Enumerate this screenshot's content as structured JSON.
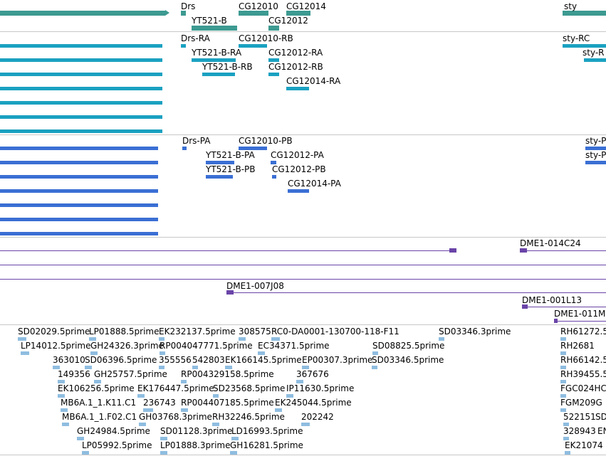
{
  "colors": {
    "gene": "#3d9a91",
    "transcript": "#1aa1c1",
    "protein": "#3a6fd4",
    "clone": "#6a44a8",
    "est": "#8fbde0",
    "separator": "#c8c8c8"
  },
  "gene_track": {
    "labels": [
      "Drs",
      "CG12010",
      "CG12014",
      "sty",
      "YT521-B",
      "CG12012"
    ]
  },
  "transcript_track": {
    "labels": [
      "Drs-RA",
      "CG12010-RB",
      "sty-RC",
      "YT521-B-RA",
      "CG12012-RA",
      "sty-R",
      "YT521-B-RB",
      "CG12012-RB",
      "CG12014-RA"
    ]
  },
  "protein_track": {
    "labels": [
      "Drs-PA",
      "CG12010-PB",
      "sty-P",
      "YT521-B-PA",
      "CG12012-PA",
      "sty-P",
      "YT521-B-PB",
      "CG12012-PB",
      "CG12014-PA"
    ]
  },
  "clone_track": {
    "labels": [
      "DME1-014C24",
      "DME1-007J08",
      "DME1-001L13",
      "DME1-011M"
    ]
  },
  "est_track": {
    "rows": [
      [
        "SD02029.5prime",
        "LP01888.5prime",
        "EK232137.5prime",
        "308575",
        "RC0-DA0001-130700-118-F11",
        "SD03346.3prime",
        "RH61272.5"
      ],
      [
        "LP14012.5prime",
        "GH24326.3prime",
        "RP004047771.5prime",
        "EC34371.5prime",
        "SD08825.5prime",
        "RH2681"
      ],
      [
        "363010",
        "SD06396.5prime",
        "355556",
        "542803",
        "EK166145.5prime",
        "EP00307.3prime",
        "SD03346.5prime",
        "RH66142.5"
      ],
      [
        "149356",
        "GH25757.5prime",
        "RP004329158.5prime",
        "367676",
        "RH39455.5"
      ],
      [
        "EK106256.5prime",
        "EK176447.5prime",
        "SD23568.5prime",
        "IP11630.5prime",
        "FGC024HC"
      ],
      [
        "MB6A.1_1.K11.C1",
        "236743",
        "RP004407185.5prime",
        "EK245044.5prime",
        "FGM209G"
      ],
      [
        "MB6A.1_1.F02.C1",
        "GH03768.3prime",
        "RH32246.5prime",
        "202242",
        "522151",
        "SD"
      ],
      [
        "GH24984.5prime",
        "SD01128.3prime",
        "LD16993.5prime",
        "328943",
        "EN"
      ],
      [
        "LP05992.5prime",
        "LP01888.3prime",
        "GH16281.5prime",
        "EK21074"
      ]
    ]
  }
}
